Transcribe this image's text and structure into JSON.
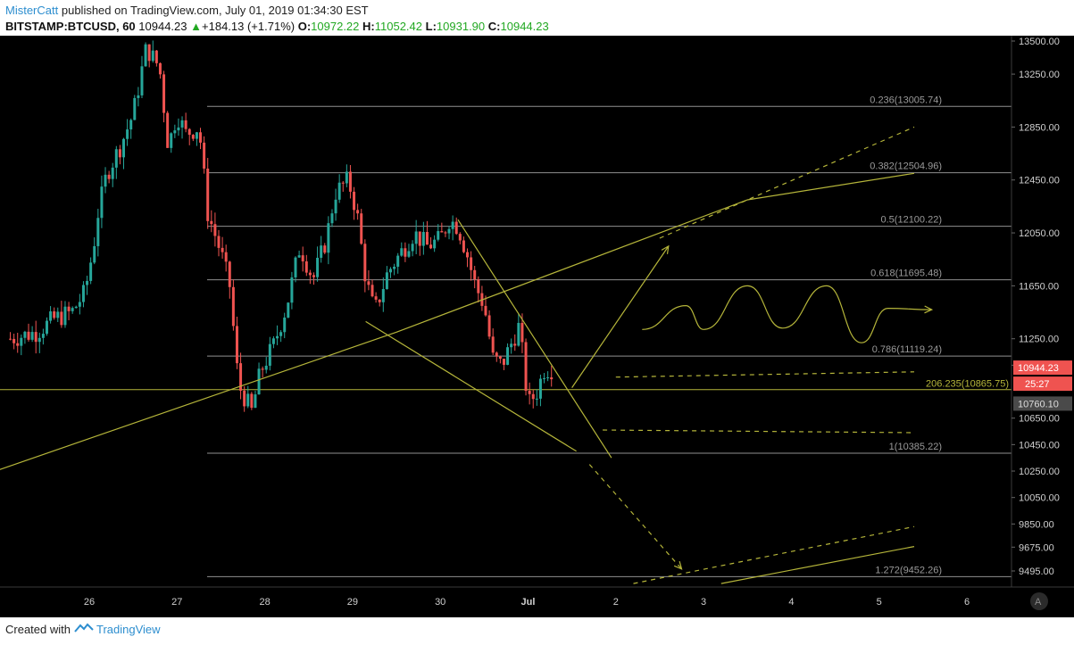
{
  "header": {
    "author": "MisterCatt",
    "published_text": "published on TradingView.com, July 01, 2019 01:34:30 EST",
    "symbol": "BITSTAMP:BTCUSD, 60",
    "last": "10944.23",
    "change": "+184.13 (+1.71%)",
    "open_label": "O:",
    "open": "10972.22",
    "high_label": "H:",
    "high": "11052.42",
    "low_label": "L:",
    "low": "10931.90",
    "close_label": "C:",
    "close": "10944.23"
  },
  "footer": {
    "created_with": "Created with",
    "brand": "TradingView"
  },
  "colors": {
    "background": "#000000",
    "up": "#26a69a",
    "down": "#ef5350",
    "drawing": "#b5b53a",
    "fib": "#8f8f8f",
    "price_badge": "#ef5350",
    "crosshair_badge": "#4a4a4a"
  },
  "chart_data": {
    "type": "candlestick",
    "interval": "60",
    "x_ticks": [
      "26",
      "27",
      "28",
      "29",
      "30",
      "Jul",
      "2",
      "3",
      "4",
      "5",
      "6"
    ],
    "y_ticks": [
      "13500.00",
      "13250.00",
      "12850.00",
      "12450.00",
      "12050.00",
      "11650.00",
      "11250.00",
      "11050.00",
      "10650.00",
      "10450.00",
      "10250.00",
      "10050.00",
      "9850.00",
      "9675.00",
      "9495.00"
    ],
    "ylim": [
      9400,
      13550
    ],
    "last_price": "10944.23",
    "countdown": "25:27",
    "crosshair_price": "10760.10",
    "watermark": "A",
    "fib_levels": [
      {
        "label": "0.236(13005.74)",
        "price": 13005.74
      },
      {
        "label": "0.382(12504.96)",
        "price": 12504.96
      },
      {
        "label": "0.5(12100.22)",
        "price": 12100.22
      },
      {
        "label": "0.618(11695.48)",
        "price": 11695.48
      },
      {
        "label": "0.786(11119.24)",
        "price": 11119.24
      },
      {
        "label": "1(10385.22)",
        "price": 10385.22
      },
      {
        "label": "1.272(9452.26)",
        "price": 9452.26
      }
    ],
    "horizontal_line": {
      "label": "206.235(10865.75)",
      "price": 10865.75
    },
    "candle_path": [
      [
        25.1,
        11250
      ],
      [
        25.4,
        11300
      ],
      [
        25.6,
        11400
      ],
      [
        25.8,
        11450
      ],
      [
        25.95,
        11600
      ],
      [
        26.05,
        11950
      ],
      [
        26.1,
        12200
      ],
      [
        26.2,
        12500
      ],
      [
        26.35,
        12700
      ],
      [
        26.5,
        12950
      ],
      [
        26.65,
        13450
      ],
      [
        26.8,
        13300
      ],
      [
        26.9,
        12700
      ],
      [
        27.0,
        12950
      ],
      [
        27.1,
        12800
      ],
      [
        27.25,
        12850
      ],
      [
        27.35,
        12200
      ],
      [
        27.5,
        11900
      ],
      [
        27.6,
        11650
      ],
      [
        27.7,
        10900
      ],
      [
        27.85,
        10700
      ],
      [
        27.95,
        11000
      ],
      [
        28.1,
        11200
      ],
      [
        28.25,
        11500
      ],
      [
        28.4,
        11950
      ],
      [
        28.55,
        11700
      ],
      [
        28.7,
        12000
      ],
      [
        28.8,
        12350
      ],
      [
        28.95,
        12450
      ],
      [
        29.05,
        12200
      ],
      [
        29.15,
        11700
      ],
      [
        29.25,
        11450
      ],
      [
        29.4,
        11750
      ],
      [
        29.55,
        11900
      ],
      [
        29.7,
        12050
      ],
      [
        29.85,
        11950
      ],
      [
        30.0,
        12000
      ],
      [
        30.1,
        12150
      ],
      [
        30.2,
        12100
      ],
      [
        30.3,
        11900
      ],
      [
        30.4,
        11650
      ],
      [
        30.5,
        11500
      ],
      [
        30.6,
        11100
      ],
      [
        30.7,
        11050
      ],
      [
        30.8,
        11200
      ],
      [
        30.9,
        11350
      ],
      [
        31.0,
        10750
      ],
      [
        31.1,
        10850
      ],
      [
        31.2,
        11050
      ],
      [
        31.3,
        10944
      ]
    ],
    "drawings": [
      {
        "name": "rising-trendline",
        "points": [
          [
            24.06,
            10050
          ],
          [
            29.5,
            11300
          ],
          [
            33.5,
            12300
          ],
          [
            35.4,
            12500
          ]
        ],
        "style": "solid"
      },
      {
        "name": "channel-top-dashed",
        "points": [
          [
            32.5,
            12010
          ],
          [
            35.4,
            12850
          ]
        ],
        "style": "dashed"
      },
      {
        "name": "wedge-top",
        "points": [
          [
            30.2,
            12150
          ],
          [
            31.95,
            10350
          ]
        ],
        "style": "solid"
      },
      {
        "name": "wedge-bottom",
        "points": [
          [
            29.15,
            11380
          ],
          [
            31.55,
            10400
          ]
        ],
        "style": "solid"
      },
      {
        "name": "forecast-arrow-up",
        "points": [
          [
            31.5,
            10880
          ],
          [
            32.6,
            11950
          ]
        ],
        "style": "solid"
      },
      {
        "name": "forecast-arrow-down",
        "points": [
          [
            31.7,
            10300
          ],
          [
            32.75,
            9510
          ]
        ],
        "style": "dashed"
      },
      {
        "name": "support-line-low",
        "points": [
          [
            33.2,
            9400
          ],
          [
            35.4,
            9680
          ]
        ],
        "style": "solid"
      },
      {
        "name": "support-line-low-dashed",
        "points": [
          [
            32.2,
            9400
          ],
          [
            35.4,
            9830
          ]
        ],
        "style": "dashed"
      },
      {
        "name": "dashed-level-high",
        "points": [
          [
            32.0,
            10960
          ],
          [
            35.4,
            11000
          ]
        ],
        "style": "dashed"
      },
      {
        "name": "dashed-level-low",
        "points": [
          [
            31.85,
            10560
          ],
          [
            35.4,
            10540
          ]
        ],
        "style": "dashed"
      }
    ],
    "wave_path": [
      [
        32.3,
        11320
      ],
      [
        32.8,
        11500
      ],
      [
        33.0,
        11320
      ],
      [
        33.5,
        11650
      ],
      [
        33.9,
        11330
      ],
      [
        34.4,
        11650
      ],
      [
        34.8,
        11220
      ],
      [
        35.1,
        11480
      ],
      [
        35.6,
        11470
      ]
    ]
  }
}
